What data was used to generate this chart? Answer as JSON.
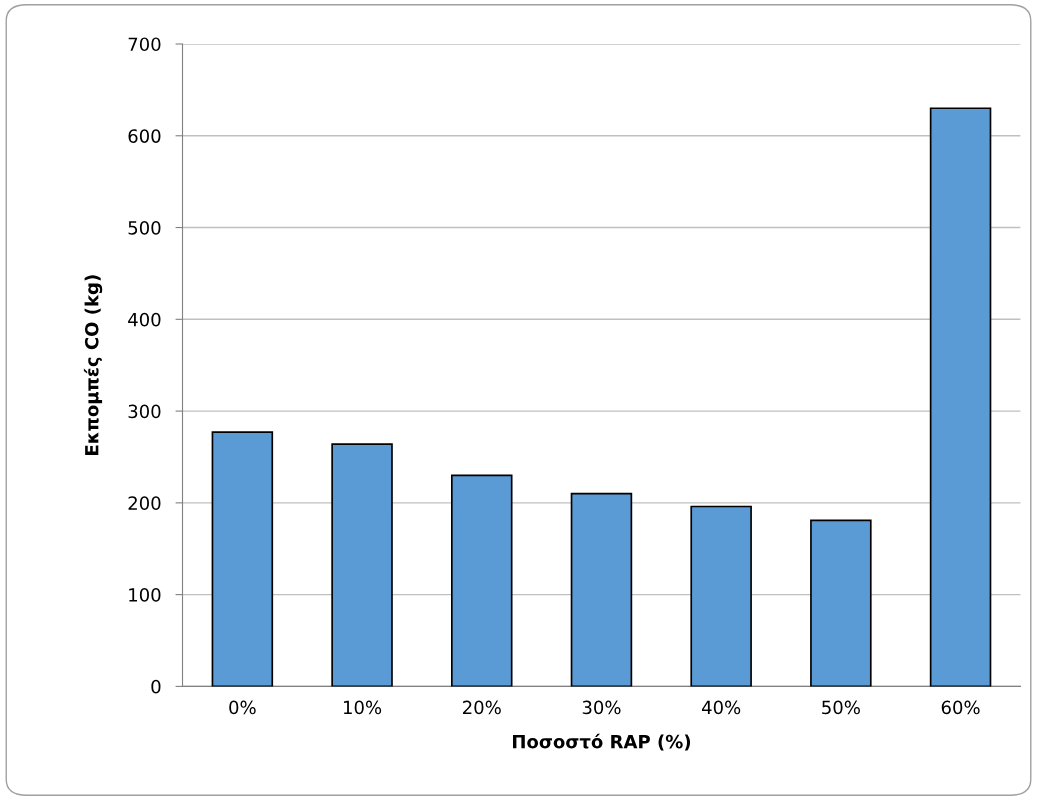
{
  "chart_data": {
    "type": "bar",
    "xlabel": "Ποσοστό RAP (%)",
    "ylabel": "Εκπομπές CO (kg)",
    "categories": [
      "0%",
      "10%",
      "20%",
      "30%",
      "40%",
      "50%",
      "60%"
    ],
    "values": [
      277,
      264,
      230,
      210,
      196,
      181,
      630
    ],
    "color": "#5b9bd5",
    "ylim": [
      0,
      700
    ],
    "yticks": [
      0,
      100,
      200,
      300,
      400,
      500,
      600,
      700
    ],
    "grid": "y",
    "legend": false
  }
}
